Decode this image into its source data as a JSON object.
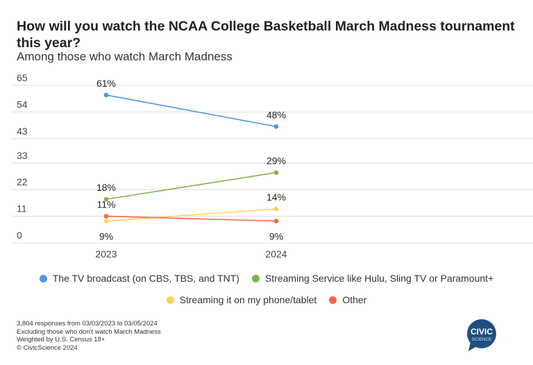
{
  "title": "How will you watch the NCAA College Basketball March Madness tournament this year?",
  "subtitle": "Among those who watch March Madness",
  "chart_data": {
    "type": "line",
    "x": [
      "2023",
      "2024"
    ],
    "yticks": [
      0,
      11,
      22,
      33,
      43,
      54,
      65
    ],
    "ylim": [
      0,
      65
    ],
    "grid": true,
    "legend_position": "bottom",
    "series": [
      {
        "name": "The TV broadcast (on CBS, TBS, and TNT)",
        "values": [
          61,
          48
        ],
        "labels": [
          "61%",
          "48%"
        ],
        "color": "#4f96e6",
        "label_pos": [
          "above",
          "above"
        ]
      },
      {
        "name": "Streaming Service like Hulu, Sling TV or Paramount+",
        "values": [
          18,
          29
        ],
        "labels": [
          "18%",
          "29%"
        ],
        "color": "#7ab648",
        "label_pos": [
          "above",
          "above"
        ]
      },
      {
        "name": "Streaming it on my phone/tablet",
        "values": [
          9,
          14
        ],
        "labels": [
          "9%",
          "14%"
        ],
        "color": "#ffd257",
        "label_pos": [
          "below",
          "above"
        ]
      },
      {
        "name": "Other",
        "values": [
          11,
          9
        ],
        "labels": [
          "11%",
          "9%"
        ],
        "color": "#f2674a",
        "label_pos": [
          "above",
          "below"
        ]
      }
    ]
  },
  "notes": [
    "3,804 responses from 03/03/2023 to 03/05/2024",
    "Excluding those who don't watch March Madness",
    "Weighted by U.S. Census 18+",
    "© CivicScience 2024"
  ],
  "logo": {
    "line1": "CIVIC",
    "line2": "SCIENCE",
    "color": "#1f4f7f"
  }
}
